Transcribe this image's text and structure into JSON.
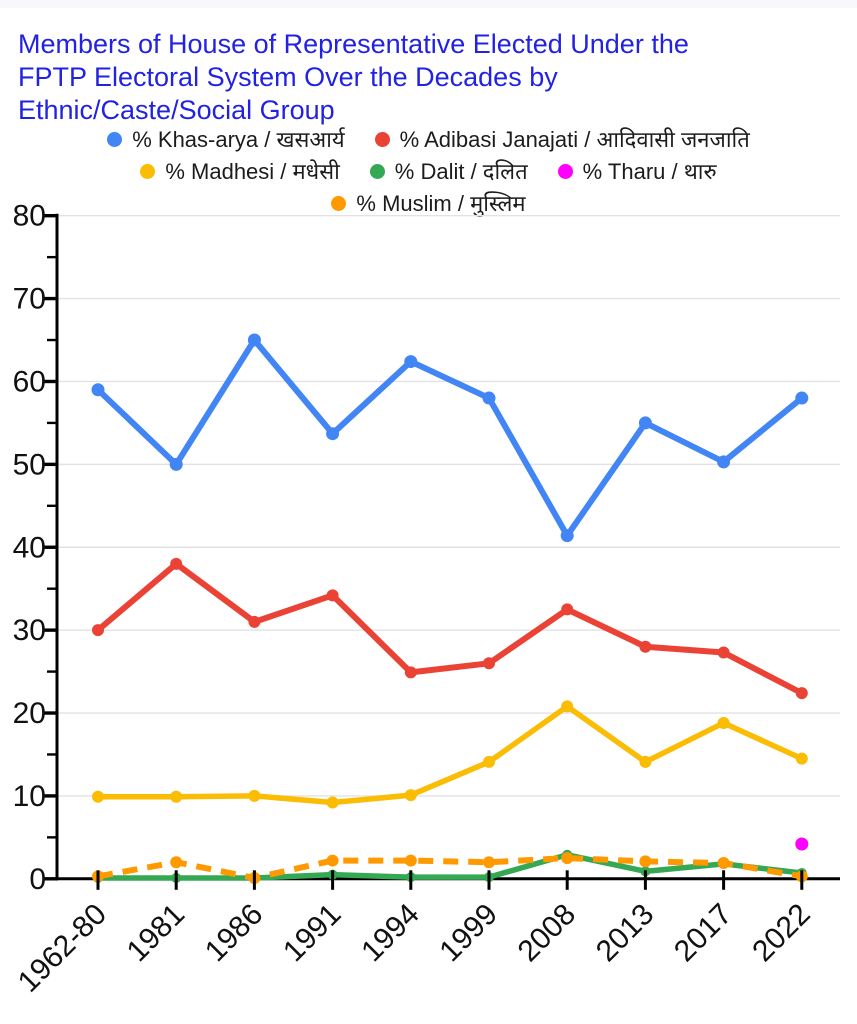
{
  "title": "Members of House of Representative Elected Under the\nFPTP Electoral System Over the Decades by\nEthnic/Caste/Social Group",
  "colors": {
    "title": "#2222E2",
    "axis": "#000000",
    "gridline": "#E2E2E6",
    "tick_label": "#111111",
    "top_strip": "#F7F7FC",
    "legend_text": "#1C1C1C"
  },
  "chart_data": {
    "type": "line",
    "title": "Members of House of Representative Elected Under the FPTP Electoral System Over the Decades by Ethnic/Caste/Social Group",
    "xlabel": "",
    "ylabel": "",
    "ylim": [
      0,
      80
    ],
    "ytick_step": 10,
    "y_tick_labels": [
      "0",
      "10",
      "20",
      "30",
      "40",
      "50",
      "60",
      "70",
      "80"
    ],
    "grid": true,
    "legend_position": "top",
    "categories": [
      "1962-80",
      "1981",
      "1986",
      "1991",
      "1994",
      "1999",
      "2008",
      "2013",
      "2017",
      "2022"
    ],
    "series": [
      {
        "name": "% Khas-arya / खसआर्य",
        "color": "#4285F4",
        "style": "solid",
        "point_radius": 6.5,
        "line_width": 6,
        "values": [
          59,
          50,
          65,
          53.7,
          62.4,
          58,
          41.4,
          55,
          50.3,
          58
        ]
      },
      {
        "name": "% Adibasi Janajati / आदिवासी जनजाति",
        "color": "#EA4335",
        "style": "solid",
        "point_radius": 6,
        "line_width": 6,
        "values": [
          30,
          38,
          31,
          34.2,
          24.9,
          26,
          32.5,
          28,
          27.3,
          22.4
        ]
      },
      {
        "name": "% Madhesi / मधेसी",
        "color": "#FBBC04",
        "style": "solid",
        "point_radius": 6,
        "line_width": 5.5,
        "values": [
          9.9,
          9.9,
          10,
          9.2,
          10.1,
          14.1,
          20.8,
          14.1,
          18.8,
          14.5
        ]
      },
      {
        "name": "% Dalit / दलित",
        "color": "#34A853",
        "style": "solid",
        "point_radius": 5,
        "line_width": 5.5,
        "values": [
          0.1,
          0.1,
          0.1,
          0.5,
          0.2,
          0.2,
          2.9,
          0.9,
          1.8,
          0.7
        ]
      },
      {
        "name": "% Tharu / थारु",
        "color": "#FF00FF",
        "style": "solid",
        "point_radius": 6.5,
        "line_width": 5.5,
        "values": [
          null,
          null,
          null,
          null,
          null,
          null,
          null,
          null,
          null,
          4.2
        ]
      },
      {
        "name": "% Muslim / मुस्लिम",
        "color": "#FF9900",
        "style": "dashed",
        "point_radius": 6,
        "line_width": 6,
        "values": [
          0.3,
          2,
          0.1,
          2.2,
          2.2,
          2,
          2.5,
          2.1,
          1.9,
          0.3
        ]
      }
    ]
  },
  "layout_rows": [
    [
      0,
      1
    ],
    [
      2,
      3,
      4
    ],
    [
      5
    ]
  ]
}
